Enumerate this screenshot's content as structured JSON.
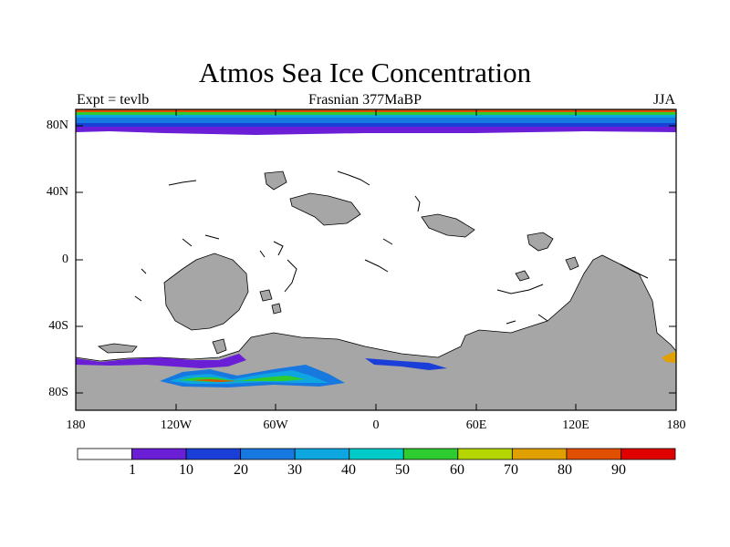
{
  "title": "Atmos Sea Ice Concentration",
  "subtitle_left": "Expt = tevlb",
  "subtitle_center": "Frasnian 377MaBP",
  "subtitle_right": "JJA",
  "y_axis": {
    "labels": [
      "80N",
      "40N",
      "0",
      "40S",
      "80S"
    ],
    "values": [
      80,
      40,
      0,
      -40,
      -80
    ],
    "range": [
      -90,
      90
    ]
  },
  "x_axis": {
    "labels": [
      "180",
      "120W",
      "60W",
      "0",
      "60E",
      "120E",
      "180"
    ],
    "values": [
      -180,
      -120,
      -60,
      0,
      60,
      120,
      180
    ],
    "range": [
      -180,
      180
    ]
  },
  "colorbar": {
    "levels": [
      "1",
      "10",
      "20",
      "30",
      "40",
      "50",
      "60",
      "70",
      "80",
      "90"
    ],
    "colors": [
      "#ffffff",
      "#6a1fd6",
      "#1a3fd9",
      "#1778e0",
      "#0ea6e0",
      "#00cbc8",
      "#2ecc2e",
      "#b5d600",
      "#e0a000",
      "#e05000",
      "#e00000"
    ]
  },
  "colors": {
    "land": "#a6a6a6",
    "ocean": "#ffffff",
    "ice_band": [
      "#6a1fd6",
      "#1a3fd9",
      "#1778e0",
      "#0ea6e0",
      "#00cbc8",
      "#2ecc2e",
      "#e0a000"
    ]
  }
}
